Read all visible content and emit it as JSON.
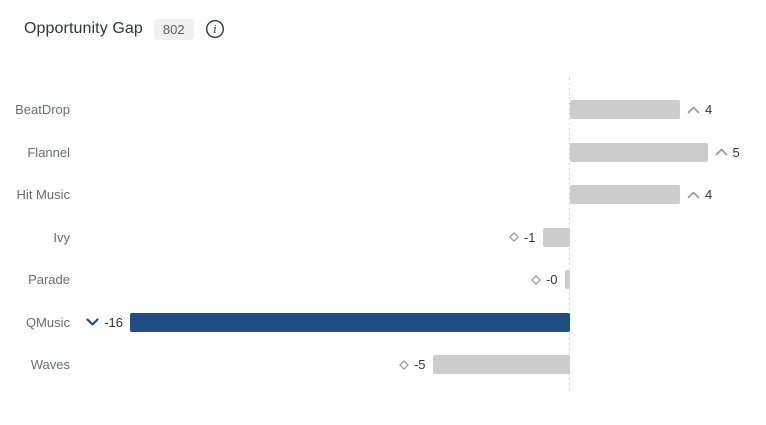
{
  "header": {
    "title": "Opportunity Gap",
    "badge": "802"
  },
  "colors": {
    "bar_default": "#cccccc",
    "bar_highlight": "#1f4e82",
    "icon_gray": "#999999",
    "value_text": "#32363a",
    "label_text": "#6a6d70",
    "title_text": "#32363a",
    "badge_bg": "#f0f0f0",
    "badge_text": "#5f5f5f",
    "baseline": "#c9c9c9"
  },
  "chart_data": {
    "type": "bar",
    "orientation": "horizontal",
    "title": "Opportunity Gap",
    "xlabel": "",
    "ylabel": "",
    "grid": false,
    "zero_line": "dotted",
    "legend": "none",
    "categories": [
      "BeatDrop",
      "Flannel",
      "Hit Music",
      "Ivy",
      "Parade",
      "QMusic",
      "Waves"
    ],
    "values": [
      4,
      5,
      4,
      -1,
      -0.2,
      -16,
      -5
    ],
    "xlim": [
      -17,
      7
    ],
    "rows": [
      {
        "label": "BeatDrop",
        "value": 4,
        "display_value": "4",
        "icon": "chevron-up",
        "highlighted": false
      },
      {
        "label": "Flannel",
        "value": 5,
        "display_value": "5",
        "icon": "chevron-up",
        "highlighted": false
      },
      {
        "label": "Hit Music",
        "value": 4,
        "display_value": "4",
        "icon": "chevron-up",
        "highlighted": false
      },
      {
        "label": "Ivy",
        "value": -1,
        "display_value": "-1",
        "icon": "diamond",
        "highlighted": false
      },
      {
        "label": "Parade",
        "value": -0.2,
        "display_value": "-0",
        "icon": "diamond",
        "highlighted": false
      },
      {
        "label": "QMusic",
        "value": -16,
        "display_value": "-16",
        "icon": "chevron-down",
        "highlighted": true
      },
      {
        "label": "Waves",
        "value": -5,
        "display_value": "-5",
        "icon": "diamond",
        "highlighted": false
      }
    ]
  }
}
